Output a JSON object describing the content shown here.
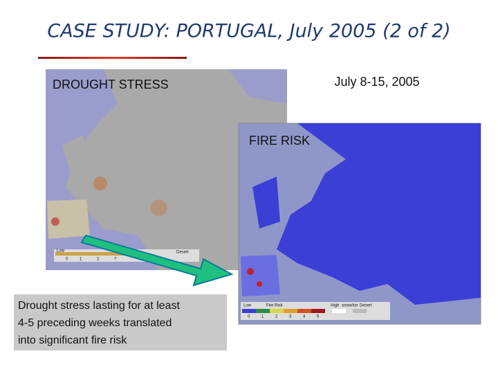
{
  "header": {
    "title": "CASE STUDY: PORTUGAL, July 2005 (2 of 2)"
  },
  "drought_map": {
    "label": "DROUGHT STRESS",
    "legend": [
      "Low",
      "Desert",
      "0",
      "1",
      "2",
      "?"
    ]
  },
  "date": "July 8-15, 2005",
  "fire_map": {
    "label": "FIRE RISK",
    "legend": [
      "Low",
      "Fire Risk",
      "High",
      "snow/ice",
      "Desert",
      "0",
      "1",
      "2",
      "3",
      "4",
      "5"
    ]
  },
  "caption": {
    "lines": [
      "Drought stress lasting for at least",
      "4-5 preceding weeks translated",
      "into significant fire risk"
    ]
  }
}
